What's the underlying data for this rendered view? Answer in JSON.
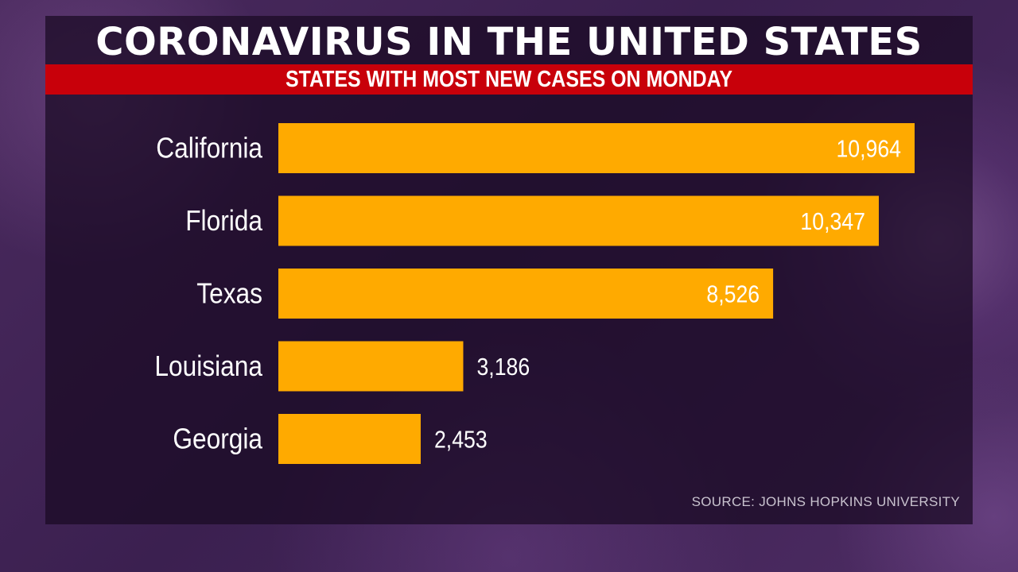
{
  "chart_data": {
    "type": "bar",
    "orientation": "horizontal",
    "title": "CORONAVIRUS IN THE UNITED STATES",
    "subtitle": "STATES WITH MOST NEW CASES ON MONDAY",
    "categories": [
      "California",
      "Florida",
      "Texas",
      "Louisiana",
      "Georgia"
    ],
    "values": [
      10964,
      10347,
      8526,
      3186,
      2453
    ],
    "value_labels": [
      "10,964",
      "10,347",
      "8,526",
      "3,186",
      "2,453"
    ],
    "xlim": [
      0,
      10964
    ],
    "grid": false,
    "legend": "none"
  },
  "source": "SOURCE: JOHNS HOPKINS UNIVERSITY",
  "colors": {
    "bar": "#ffaa00",
    "title_band": "#c8000a",
    "text": "#ffffff",
    "source_text": "#c9c3cf"
  }
}
